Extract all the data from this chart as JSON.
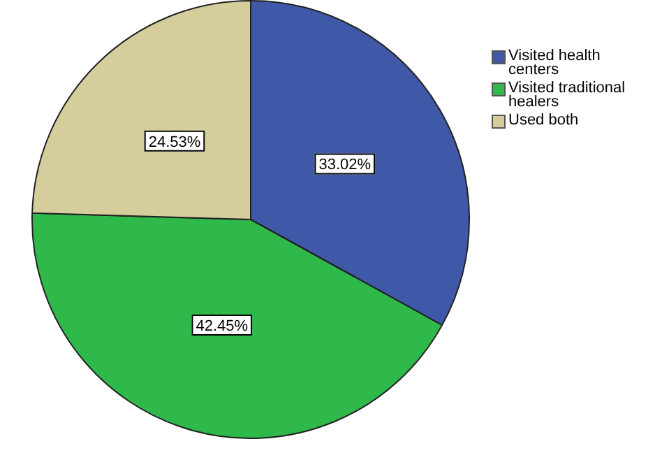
{
  "chart_data": {
    "type": "pie",
    "categories": [
      "Visited health centers",
      "Visited traditional healers",
      "Used both"
    ],
    "values": [
      33.02,
      42.45,
      24.53
    ],
    "colors": [
      "#3f58a8",
      "#2eb94a",
      "#d5cd9b"
    ],
    "value_labels": [
      "33.02%",
      "42.45%",
      "24.53%"
    ],
    "legend": "top right"
  }
}
